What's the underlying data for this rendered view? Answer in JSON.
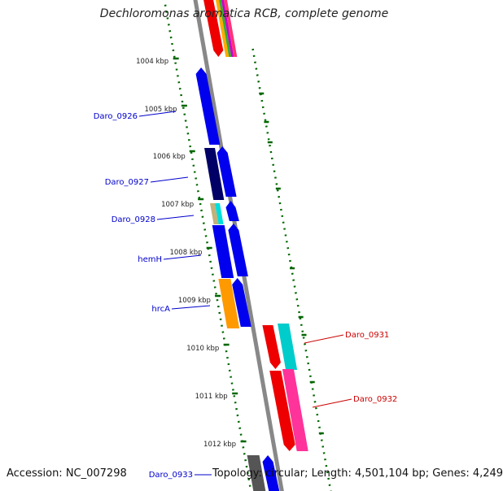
{
  "title": "Dechloromonas aromatica RCB, complete genome",
  "footer": {
    "accession": "Accession: NC_007298",
    "topology": "Topology: circular; Length: 4,501,104 bp; Genes: 4,249"
  },
  "scale": {
    "ticks": [
      "1004 kbp",
      "1005 kbp",
      "1006 kbp",
      "1007 kbp",
      "1008 kbp",
      "1009 kbp",
      "1010 kbp",
      "1011 kbp",
      "1012 kbp"
    ]
  },
  "genes": [
    {
      "label": "Daro_0926",
      "color": "#0000cc"
    },
    {
      "label": "Daro_0927",
      "color": "#0000cc"
    },
    {
      "label": "Daro_0928",
      "color": "#0000cc"
    },
    {
      "label": "hemH",
      "color": "#0000cc"
    },
    {
      "label": "hrcA",
      "color": "#0000cc"
    },
    {
      "label": "Daro_0931",
      "color": "#cc0000"
    },
    {
      "label": "Daro_0932",
      "color": "#cc0000"
    },
    {
      "label": "Daro_0933",
      "color": "#0000cc"
    }
  ],
  "colors": {
    "backbone": "#888888",
    "gc_dots": "#006600",
    "forward_label": "#0000cc",
    "reverse_label": "#cc0000"
  }
}
